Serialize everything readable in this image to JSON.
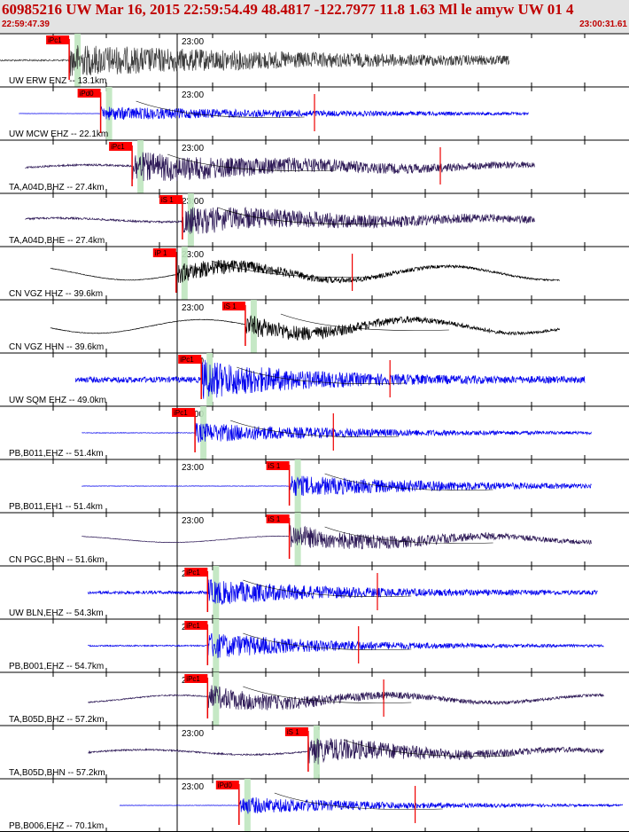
{
  "header": {
    "title": "60985216 UW Mar 16, 2015 22:59:54.49   48.4817 -122.7977 11.8 1.63 Ml le amyw UW 01   4",
    "start_time": "22:59:47.39",
    "end_time": "23:00:31.61"
  },
  "colors": {
    "header_bg": "#e3e3e3",
    "header_text": "#c00000",
    "pick_box": "#ff0000",
    "pick_window": "#bfe6bf",
    "blue": "#0000ee",
    "black": "#000000",
    "purple": "#2e1a57",
    "gray": "#3a3a3a",
    "red": "#ee0000"
  },
  "time_tick_label": "23:00",
  "traces": [
    {
      "label": "UW ERW ENZ -- 13.1km",
      "color": "gray",
      "pick": "iPc1",
      "pick_t": 0.11,
      "noise": 0.15,
      "amp": 0.8,
      "decay": 0.6,
      "wave": 0,
      "end": 0.81,
      "start": 0.0,
      "red_marks": []
    },
    {
      "label": "UW MCW EHZ -- 22.1km",
      "color": "blue",
      "pick": "iPd0",
      "pick_t": 0.16,
      "noise": 0.02,
      "amp": 0.35,
      "decay": 0.5,
      "wave": 0,
      "end": 0.84,
      "start": 0.03,
      "red_marks": [
        0.5
      ]
    },
    {
      "label": "TA,A04D,BHZ -- 27.4km",
      "color": "purple",
      "pick": "iPc1",
      "pick_t": 0.21,
      "noise": 0.18,
      "amp": 0.75,
      "decay": 0.4,
      "wave": 0.15,
      "end": 0.85,
      "start": 0.04,
      "red_marks": [
        0.7
      ]
    },
    {
      "label": "TA,A04D,BHE -- 27.4km",
      "color": "purple",
      "pick": "iS 1",
      "pick_t": 0.29,
      "noise": 0.18,
      "amp": 0.7,
      "decay": 0.4,
      "wave": 0.15,
      "end": 0.85,
      "start": 0.04,
      "red_marks": []
    },
    {
      "label": "CN VGZ HHZ -- 39.6km",
      "color": "black",
      "pick": "iP 1",
      "pick_t": 0.28,
      "noise": 0.05,
      "amp": 0.5,
      "decay": 0.25,
      "wave": 0.55,
      "end": 0.89,
      "start": 0.08,
      "red_marks": [
        0.56
      ]
    },
    {
      "label": "CN VGZ HHN -- 39.6km",
      "color": "black",
      "pick": "iS 1",
      "pick_t": 0.39,
      "noise": 0.05,
      "amp": 0.55,
      "decay": 0.25,
      "wave": 0.55,
      "end": 0.89,
      "start": 0.08,
      "red_marks": []
    },
    {
      "label": "UW SQM EHZ -- 49.0km",
      "color": "blue",
      "pick": "iPc1",
      "pick_t": 0.32,
      "noise": 0.55,
      "amp": 0.9,
      "decay": 0.2,
      "wave": 0,
      "end": 0.93,
      "start": 0.12,
      "red_marks": [
        0.62
      ]
    },
    {
      "label": "PB,B011,EHZ -- 51.4km",
      "color": "blue",
      "pick": "iPc1",
      "pick_t": 0.31,
      "noise": 0.06,
      "amp": 0.5,
      "decay": 0.35,
      "wave": 0,
      "end": 0.94,
      "start": 0.13,
      "red_marks": [
        0.53
      ]
    },
    {
      "label": "PB,B011,EH1 -- 51.4km",
      "color": "blue",
      "pick": "iS 1",
      "pick_t": 0.46,
      "noise": 0.04,
      "amp": 0.55,
      "decay": 0.35,
      "wave": 0,
      "end": 0.94,
      "start": 0.13,
      "red_marks": []
    },
    {
      "label": "CN PGC,BHN -- 51.6km",
      "color": "purple",
      "pick": "iS 1",
      "pick_t": 0.46,
      "noise": 0.05,
      "amp": 0.6,
      "decay": 0.3,
      "wave": 0.25,
      "end": 0.94,
      "start": 0.13,
      "red_marks": []
    },
    {
      "label": "UW BLN,EHZ -- 54.3km",
      "color": "blue",
      "pick": "iPc1",
      "pick_t": 0.33,
      "noise": 0.3,
      "amp": 0.6,
      "decay": 0.25,
      "wave": 0,
      "end": 0.95,
      "start": 0.14,
      "red_marks": [
        0.6
      ]
    },
    {
      "label": "PB,B001,EHZ -- 54.7km",
      "color": "blue",
      "pick": "iPc1",
      "pick_t": 0.33,
      "noise": 0.12,
      "amp": 0.65,
      "decay": 0.25,
      "wave": 0,
      "end": 0.96,
      "start": 0.14,
      "red_marks": [
        0.57
      ]
    },
    {
      "label": "TA,B05D,BHZ -- 57.2km",
      "color": "purple",
      "pick": "iPc1",
      "pick_t": 0.33,
      "noise": 0.12,
      "amp": 0.6,
      "decay": 0.25,
      "wave": 0.3,
      "end": 0.96,
      "start": 0.14,
      "red_marks": [
        0.61
      ]
    },
    {
      "label": "TA,B05D,BHN -- 57.2km",
      "color": "purple",
      "pick": "iS 1",
      "pick_t": 0.49,
      "noise": 0.15,
      "amp": 0.7,
      "decay": 0.25,
      "wave": 0.2,
      "end": 0.96,
      "start": 0.14,
      "red_marks": []
    },
    {
      "label": "PB,B006,EHZ -- 70.1km",
      "color": "blue",
      "pick": "iPd0",
      "pick_t": 0.38,
      "noise": 0.04,
      "amp": 0.45,
      "decay": 0.3,
      "wave": 0,
      "end": 0.99,
      "start": 0.19,
      "red_marks": [
        0.66
      ]
    }
  ]
}
